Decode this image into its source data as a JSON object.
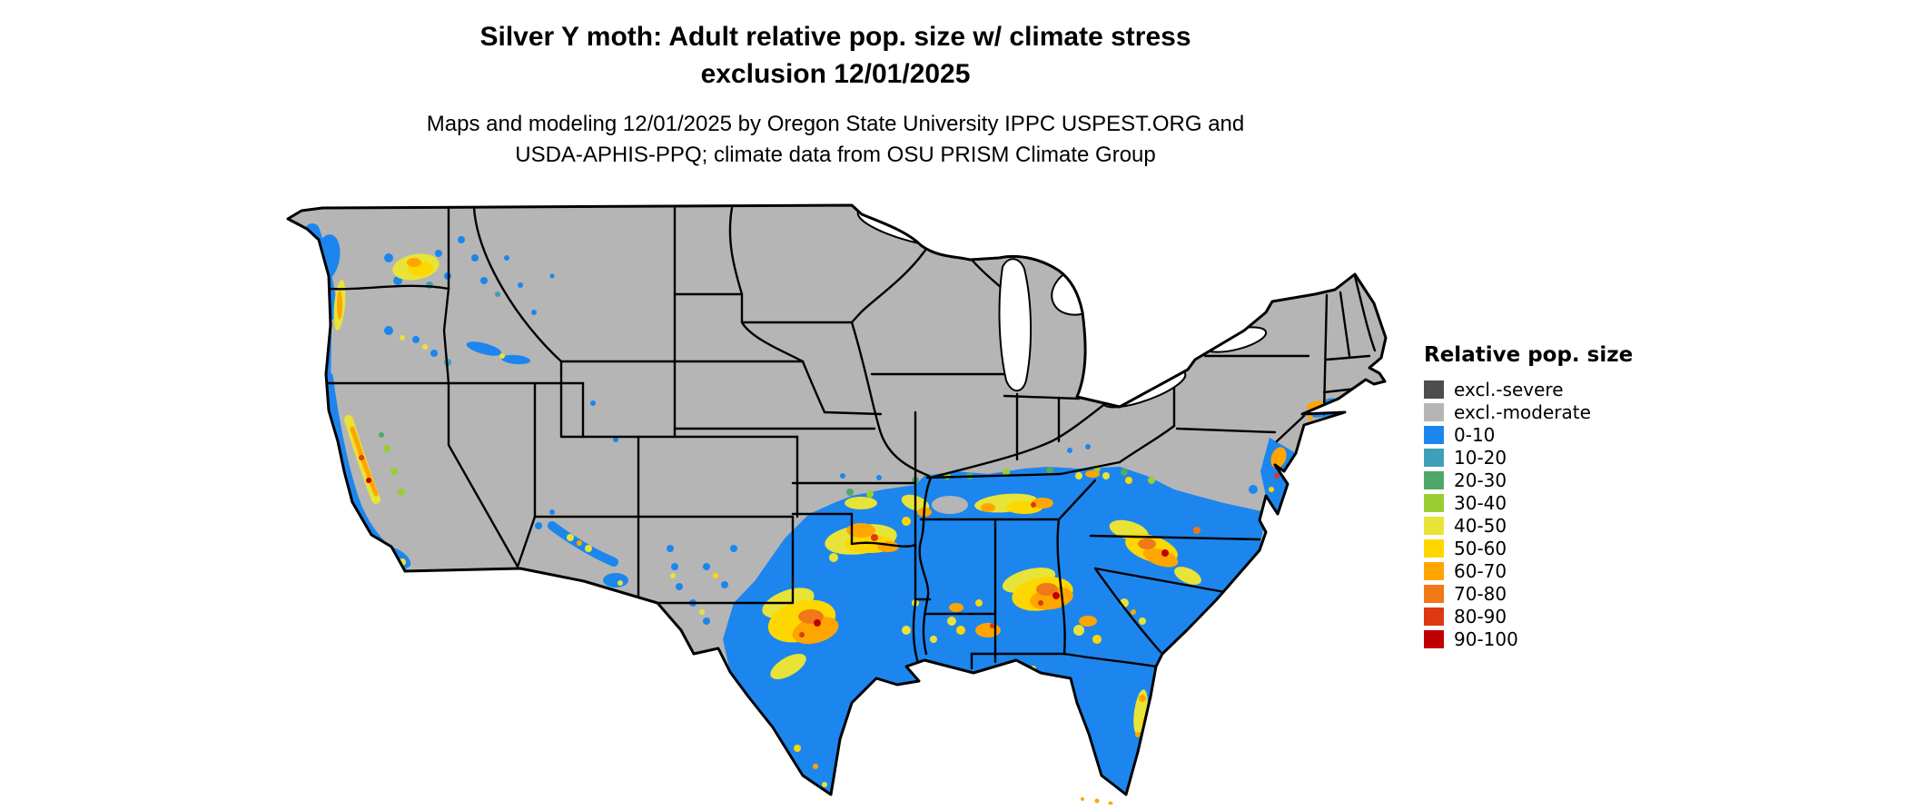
{
  "title": {
    "line1": "Silver Y moth: Adult relative pop. size w/ climate stress",
    "line2": "exclusion 12/01/2025"
  },
  "subtitle": {
    "line1": "Maps and modeling 12/01/2025 by Oregon State University IPPC USPEST.ORG and",
    "line2": "USDA-APHIS-PPQ; climate data from OSU PRISM Climate Group"
  },
  "legend": {
    "title": "Relative pop. size",
    "items": [
      {
        "label": "excl.-severe",
        "color": "#4d4d4d"
      },
      {
        "label": "excl.-moderate",
        "color": "#b5b5b5"
      },
      {
        "label": "0-10",
        "color": "#1c86ee"
      },
      {
        "label": "10-20",
        "color": "#3f9fb8"
      },
      {
        "label": "20-30",
        "color": "#4fa86a"
      },
      {
        "label": "30-40",
        "color": "#9acd32"
      },
      {
        "label": "40-50",
        "color": "#e8e337"
      },
      {
        "label": "50-60",
        "color": "#ffd700"
      },
      {
        "label": "60-70",
        "color": "#ffa500"
      },
      {
        "label": "70-80",
        "color": "#f07818"
      },
      {
        "label": "80-90",
        "color": "#dc3912"
      },
      {
        "label": "90-100",
        "color": "#c00000"
      }
    ]
  },
  "map": {
    "region": "Continental United States",
    "background": "#ffffff",
    "border_color": "#000000",
    "base_land_category": "excl.-moderate"
  }
}
